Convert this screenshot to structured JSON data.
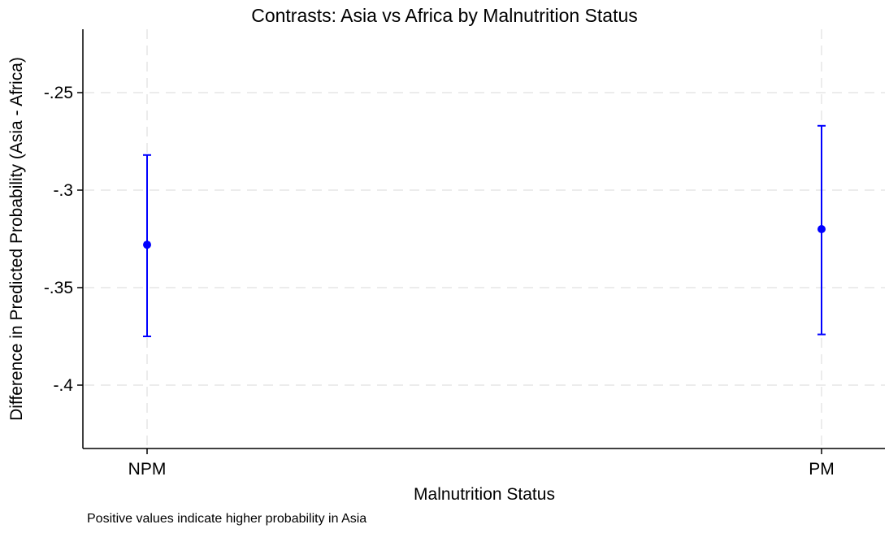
{
  "chart_data": {
    "type": "scatter",
    "title": "Contrasts: Asia vs Africa by Malnutrition Status",
    "xlabel": "Malnutrition Status",
    "ylabel": "Difference in Predicted Probability (Asia - Africa)",
    "note": "Positive values indicate higher probability in Asia",
    "categories": [
      "NPM",
      "PM"
    ],
    "series": [
      {
        "values": [
          -0.328,
          -0.32
        ],
        "ci_lower": [
          -0.375,
          -0.374
        ],
        "ci_upper": [
          -0.282,
          -0.267
        ]
      }
    ],
    "ylim": [
      -0.4325,
      -0.2175
    ],
    "yticks": [
      -0.25,
      -0.3,
      -0.35,
      -0.4
    ],
    "ytick_labels": [
      "-.25",
      "-.3",
      "-.35",
      "-.4"
    ],
    "grid": true,
    "colors": {
      "marker": "#0000ff",
      "grid": "#ececec"
    }
  }
}
